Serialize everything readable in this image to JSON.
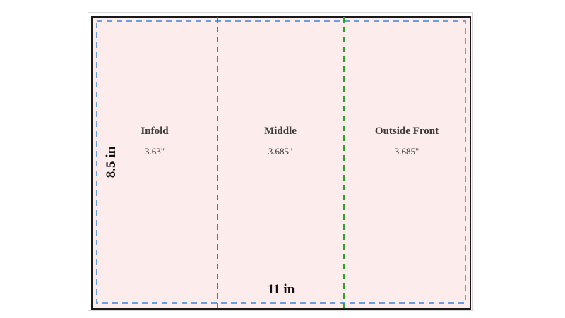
{
  "diagram": {
    "dimensions": {
      "width_label": "11 in",
      "height_label": "8.5 in"
    },
    "panels": [
      {
        "title": "Infold",
        "width": "3.63\""
      },
      {
        "title": "Middle",
        "width": "3.685\""
      },
      {
        "title": "Outside Front",
        "width": "3.685\""
      }
    ],
    "colors": {
      "sheet_fill": "#fdecec",
      "trim_border": "#1a1a1a",
      "safe_zone_line": "#6a9ee0",
      "fold_line": "#2ea02e"
    },
    "line_styles": {
      "safe_zone": "dashed",
      "fold": "dashed"
    }
  }
}
